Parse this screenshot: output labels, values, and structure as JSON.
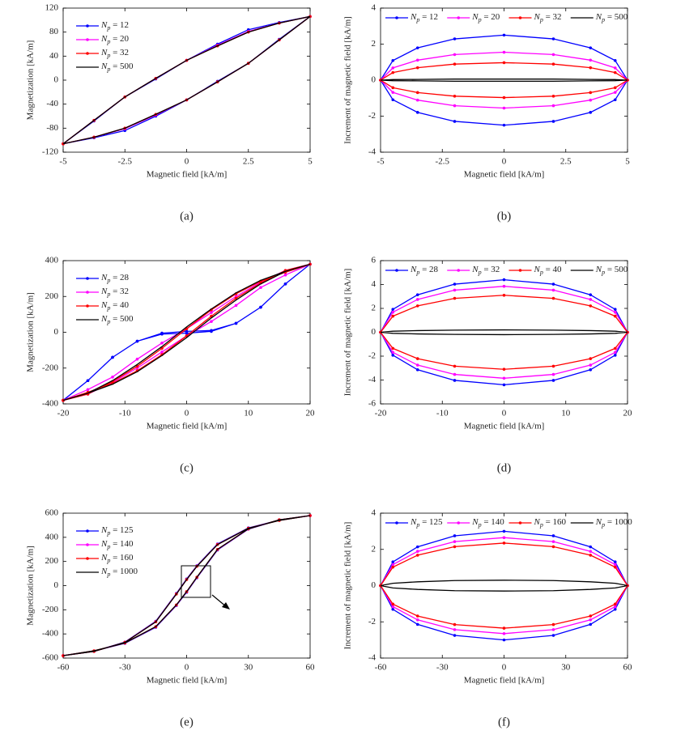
{
  "chart_data": [
    {
      "type": "line",
      "label": "(a)",
      "xlabel": "Magnetic field [kA/m]",
      "ylabel": "Magnetization [kA/m]",
      "x": [
        -5,
        -3.75,
        -2.5,
        -1.25,
        0,
        1.25,
        2.5,
        3.75,
        5,
        3.75,
        2.5,
        1.25,
        0,
        -1.25,
        -2.5,
        -3.75,
        -5
      ],
      "xlim": [
        -5,
        5
      ],
      "xticks": [
        -5,
        -2.5,
        0,
        2.5,
        5
      ],
      "ylim": [
        -120,
        120
      ],
      "yticks": [
        -120,
        -80,
        -40,
        0,
        40,
        80,
        120
      ],
      "legend": "upper left",
      "legend_ncol": 1,
      "series": [
        {
          "name": "Np = 12",
          "color": "#0000ff",
          "marker": true,
          "values": [
            -106,
            -96,
            -84,
            -60,
            -33,
            -2,
            28,
            68,
            106,
            96,
            84,
            60,
            33,
            2,
            -28,
            -68,
            -106
          ]
        },
        {
          "name": "Np = 20",
          "color": "#ff00ff",
          "marker": true,
          "values": [
            -106,
            -95,
            -81,
            -58,
            -33,
            -3,
            28,
            67,
            106,
            95,
            81,
            58,
            33,
            3,
            -28,
            -67,
            -106
          ]
        },
        {
          "name": "Np = 32",
          "color": "#ff0000",
          "marker": true,
          "values": [
            -106,
            -95,
            -80,
            -57,
            -33,
            -3,
            28,
            67,
            106,
            95,
            80,
            57,
            33,
            3,
            -28,
            -67,
            -106
          ]
        },
        {
          "name": "Np = 500",
          "color": "#000000",
          "marker": false,
          "values": [
            -106,
            -95,
            -80,
            -57,
            -33,
            -3,
            28,
            67,
            106,
            95,
            80,
            57,
            33,
            3,
            -28,
            -67,
            -106
          ]
        }
      ]
    },
    {
      "type": "line",
      "label": "(b)",
      "xlabel": "Magnetic field [kA/m]",
      "ylabel": "Increment of magnetic field [kA/m]",
      "x": [
        -5,
        -4.5,
        -3.5,
        -2,
        0,
        2,
        3.5,
        4.5,
        5,
        4.5,
        3.5,
        2,
        0,
        -2,
        -3.5,
        -4.5,
        -5
      ],
      "xlim": [
        -5,
        5
      ],
      "xticks": [
        -5,
        -2.5,
        0,
        2.5,
        5
      ],
      "ylim": [
        -4,
        4
      ],
      "yticks": [
        -4,
        -2,
        0,
        2,
        4
      ],
      "legend": "upper left",
      "legend_ncol": 4,
      "series": [
        {
          "name": "Np = 12",
          "color": "#0000ff",
          "marker": true,
          "values": [
            0,
            1.09,
            1.79,
            2.29,
            2.5,
            2.29,
            1.79,
            1.09,
            0,
            -1.09,
            -1.79,
            -2.29,
            -2.5,
            -2.29,
            -1.79,
            -1.09,
            0
          ]
        },
        {
          "name": "Np = 20",
          "color": "#ff00ff",
          "marker": true,
          "values": [
            0,
            0.68,
            1.11,
            1.42,
            1.55,
            1.42,
            1.11,
            0.68,
            0,
            -0.68,
            -1.11,
            -1.42,
            -1.55,
            -1.42,
            -1.11,
            -0.68,
            0
          ]
        },
        {
          "name": "Np = 32",
          "color": "#ff0000",
          "marker": true,
          "values": [
            0,
            0.42,
            0.69,
            0.89,
            0.97,
            0.89,
            0.69,
            0.42,
            0,
            -0.42,
            -0.69,
            -0.89,
            -0.97,
            -0.89,
            -0.69,
            -0.42,
            0
          ]
        },
        {
          "name": "Np = 500",
          "color": "#000000",
          "marker": false,
          "values": [
            0,
            0.03,
            0.04,
            0.06,
            0.06,
            0.06,
            0.04,
            0.03,
            0,
            -0.03,
            -0.04,
            -0.06,
            -0.06,
            -0.06,
            -0.04,
            -0.03,
            0
          ]
        }
      ]
    },
    {
      "type": "line",
      "label": "(c)",
      "xlabel": "Magnetic field [kA/m]",
      "ylabel": "Magnetization [kA/m]",
      "x": [
        -20,
        -16,
        -12,
        -8,
        -4,
        0,
        4,
        8,
        12,
        16,
        20,
        16,
        12,
        8,
        4,
        0,
        -4,
        -8,
        -12,
        -16,
        -20
      ],
      "xlim": [
        -20,
        20
      ],
      "xticks": [
        -20,
        -10,
        0,
        10,
        20
      ],
      "ylim": [
        -400,
        400
      ],
      "yticks": [
        -400,
        -200,
        0,
        200,
        400
      ],
      "legend": "upper left",
      "legend_ncol": 1,
      "series": [
        {
          "name": "Np = 28",
          "color": "#0000ff",
          "marker": true,
          "values": [
            -380,
            -270,
            -140,
            -50,
            -5,
            5,
            10,
            50,
            140,
            270,
            380,
            270,
            140,
            50,
            5,
            -5,
            -10,
            -50,
            -140,
            -270,
            -380
          ]
        },
        {
          "name": "Np = 32",
          "color": "#ff00ff",
          "marker": true,
          "values": [
            -380,
            -320,
            -250,
            -150,
            -60,
            20,
            110,
            200,
            280,
            345,
            380,
            320,
            250,
            150,
            60,
            -20,
            -110,
            -200,
            -280,
            -345,
            -380
          ]
        },
        {
          "name": "Np = 40",
          "color": "#ff0000",
          "marker": true,
          "values": [
            -380,
            -335,
            -285,
            -215,
            -125,
            -20,
            90,
            190,
            275,
            345,
            380,
            335,
            285,
            215,
            125,
            20,
            -90,
            -190,
            -275,
            -345,
            -380
          ]
        },
        {
          "name": "Np = 500",
          "color": "#000000",
          "marker": false,
          "values": [
            -380,
            -340,
            -290,
            -220,
            -130,
            -30,
            80,
            180,
            270,
            340,
            380,
            340,
            290,
            220,
            130,
            30,
            -80,
            -180,
            -270,
            -340,
            -380
          ]
        }
      ]
    },
    {
      "type": "line",
      "label": "(d)",
      "xlabel": "Magnetic field [kA/m]",
      "ylabel": "Increment of magnetic field [kA/m]",
      "x": [
        -20,
        -18,
        -14,
        -8,
        0,
        8,
        14,
        18,
        20,
        18,
        14,
        8,
        0,
        -8,
        -14,
        -18,
        -20
      ],
      "xlim": [
        -20,
        20
      ],
      "xticks": [
        -20,
        -10,
        0,
        10,
        20
      ],
      "ylim": [
        -6,
        6
      ],
      "yticks": [
        -6,
        -4,
        -2,
        0,
        2,
        4,
        6
      ],
      "legend": "upper left",
      "legend_ncol": 4,
      "series": [
        {
          "name": "Np = 28",
          "color": "#0000ff",
          "marker": true,
          "values": [
            0,
            1.92,
            3.14,
            4.03,
            4.4,
            4.03,
            3.14,
            1.92,
            0,
            -1.92,
            -3.14,
            -4.03,
            -4.4,
            -4.03,
            -3.14,
            -1.92,
            0
          ]
        },
        {
          "name": "Np = 32",
          "color": "#ff00ff",
          "marker": true,
          "values": [
            0,
            1.68,
            2.75,
            3.53,
            3.85,
            3.53,
            2.75,
            1.68,
            0,
            -1.68,
            -2.75,
            -3.53,
            -3.85,
            -3.53,
            -2.75,
            -1.68,
            0
          ]
        },
        {
          "name": "Np = 40",
          "color": "#ff0000",
          "marker": true,
          "values": [
            0,
            1.35,
            2.21,
            2.84,
            3.1,
            2.84,
            2.21,
            1.35,
            0,
            -1.35,
            -2.21,
            -2.84,
            -3.1,
            -2.84,
            -2.21,
            -1.35,
            0
          ]
        },
        {
          "name": "Np = 500",
          "color": "#000000",
          "marker": false,
          "values": [
            0,
            0.09,
            0.14,
            0.18,
            0.2,
            0.18,
            0.14,
            0.09,
            0,
            -0.09,
            -0.14,
            -0.18,
            -0.2,
            -0.18,
            -0.14,
            -0.09,
            0
          ]
        }
      ]
    },
    {
      "type": "line",
      "label": "(e)",
      "xlabel": "Magnetic field [kA/m]",
      "ylabel": "Magnetization [kA/m]",
      "x": [
        -60,
        -45,
        -30,
        -15,
        -5,
        0,
        5,
        15,
        30,
        45,
        60,
        45,
        30,
        15,
        5,
        0,
        -5,
        -15,
        -30,
        -45,
        -60
      ],
      "xlim": [
        -60,
        60
      ],
      "xticks": [
        -60,
        -30,
        0,
        30,
        60
      ],
      "ylim": [
        -600,
        600
      ],
      "yticks": [
        -600,
        -400,
        -200,
        0,
        200,
        400,
        600
      ],
      "legend": "upper left",
      "legend_ncol": 1,
      "series": [
        {
          "name": "Np = 125",
          "color": "#0000ff",
          "marker": true,
          "values": [
            -580,
            -542,
            -478,
            -345,
            -165,
            -55,
            65,
            295,
            468,
            544,
            580,
            542,
            478,
            345,
            165,
            55,
            -65,
            -295,
            -468,
            -544,
            -580
          ]
        },
        {
          "name": "Np = 140",
          "color": "#ff00ff",
          "marker": true,
          "values": [
            -580,
            -541,
            -476,
            -342,
            -162,
            -52,
            68,
            298,
            469,
            545,
            580,
            541,
            476,
            342,
            162,
            52,
            -68,
            -298,
            -469,
            -545,
            -580
          ]
        },
        {
          "name": "Np = 160",
          "color": "#ff0000",
          "marker": true,
          "values": [
            -580,
            -540,
            -475,
            -340,
            -160,
            -50,
            70,
            300,
            470,
            545,
            580,
            540,
            475,
            340,
            160,
            50,
            -70,
            -300,
            -470,
            -545,
            -580
          ]
        },
        {
          "name": "Np = 1000",
          "color": "#000000",
          "marker": false,
          "values": [
            -580,
            -540,
            -475,
            -340,
            -160,
            -50,
            70,
            300,
            470,
            545,
            580,
            540,
            475,
            340,
            160,
            50,
            -70,
            -300,
            -470,
            -545,
            -580
          ]
        }
      ]
    },
    {
      "type": "line",
      "label": "(f)",
      "xlabel": "Magnetic field [kA/m]",
      "ylabel": "Increment of magnetic field [kA/m]",
      "x": [
        -60,
        -54,
        -42,
        -24,
        0,
        24,
        42,
        54,
        60,
        54,
        42,
        24,
        0,
        -24,
        -42,
        -54,
        -60
      ],
      "xlim": [
        -60,
        60
      ],
      "xticks": [
        -60,
        -30,
        0,
        30,
        60
      ],
      "ylim": [
        -4,
        4
      ],
      "yticks": [
        -4,
        -2,
        0,
        2,
        4
      ],
      "legend": "upper left",
      "legend_ncol": 4,
      "series": [
        {
          "name": "Np = 125",
          "color": "#0000ff",
          "marker": true,
          "values": [
            0,
            1.31,
            2.14,
            2.75,
            3.0,
            2.75,
            2.14,
            1.31,
            0,
            -1.31,
            -2.14,
            -2.75,
            -3.0,
            -2.75,
            -2.14,
            -1.31,
            0
          ]
        },
        {
          "name": "Np = 140",
          "color": "#ff00ff",
          "marker": true,
          "values": [
            0,
            1.16,
            1.89,
            2.43,
            2.65,
            2.43,
            1.89,
            1.16,
            0,
            -1.16,
            -1.89,
            -2.43,
            -2.65,
            -2.43,
            -1.89,
            -1.16,
            0
          ]
        },
        {
          "name": "Np = 160",
          "color": "#ff0000",
          "marker": true,
          "values": [
            0,
            1.02,
            1.68,
            2.15,
            2.35,
            2.15,
            1.68,
            1.02,
            0,
            -1.02,
            -1.68,
            -2.15,
            -2.35,
            -2.15,
            -1.68,
            -1.02,
            0
          ]
        },
        {
          "name": "Np = 1000",
          "color": "#000000",
          "marker": false,
          "values": [
            0,
            0.13,
            0.21,
            0.28,
            0.3,
            0.28,
            0.21,
            0.13,
            0,
            -0.13,
            -0.21,
            -0.28,
            -0.3,
            -0.28,
            -0.21,
            -0.13,
            0
          ]
        }
      ]
    }
  ]
}
